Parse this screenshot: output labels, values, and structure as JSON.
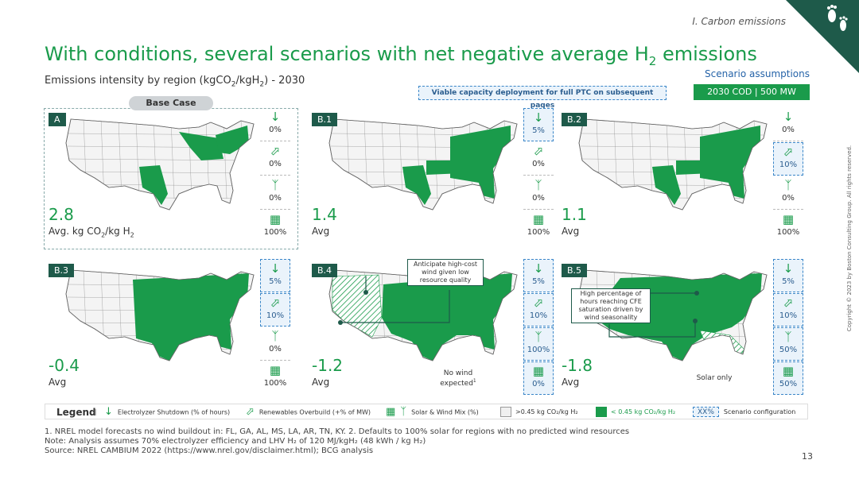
{
  "header": {
    "section": "I. Carbon emissions",
    "title": "With conditions, several scenarios with net negative average H",
    "title_sub": "2",
    "title_end": " emissions",
    "subtitle_pre": "Emissions intensity by region (kgCO",
    "subtitle_sub1": "2",
    "subtitle_mid": "/kgH",
    "subtitle_sub2": "2",
    "subtitle_end": ") - 2030"
  },
  "assumptions": {
    "label": "Scenario assumptions",
    "value": "2030 COD | 500 MW"
  },
  "viable_banner": "Viable capacity deployment for full PTC on subsequent pages",
  "base_case_label": "Base Case",
  "panels": [
    {
      "tag": "A",
      "value": "2.8",
      "label": "Avg. kg CO",
      "label_sub": "2",
      "label_end": "/kg H",
      "label_sub2": "2",
      "shutdown": "0%",
      "overbuild": "0%",
      "wind": "0%",
      "solar": "100%",
      "highlight": []
    },
    {
      "tag": "B.1",
      "value": "1.4",
      "label": "Avg",
      "shutdown": "5%",
      "overbuild": "0%",
      "wind": "0%",
      "solar": "100%",
      "highlight": [
        "shutdown"
      ]
    },
    {
      "tag": "B.2",
      "value": "1.1",
      "label": "Avg",
      "shutdown": "0%",
      "overbuild": "10%",
      "wind": "0%",
      "solar": "100%",
      "highlight": [
        "overbuild"
      ]
    },
    {
      "tag": "B.3",
      "value": "-0.4",
      "label": "Avg",
      "shutdown": "5%",
      "overbuild": "10%",
      "wind": "0%",
      "solar": "100%",
      "highlight": [
        "shutdown",
        "overbuild"
      ]
    },
    {
      "tag": "B.4",
      "value": "-1.2",
      "label": "Avg",
      "shutdown": "5%",
      "overbuild": "10%",
      "wind": "100%",
      "solar": "0%",
      "highlight": [
        "shutdown",
        "overbuild",
        "wind",
        "solar"
      ]
    },
    {
      "tag": "B.5",
      "value": "-1.8",
      "label": "Avg",
      "shutdown": "5%",
      "overbuild": "10%",
      "wind": "50%",
      "solar": "50%",
      "highlight": [
        "shutdown",
        "overbuild",
        "wind",
        "solar"
      ]
    }
  ],
  "callouts": {
    "b4_high_cost": "Anticipate high-cost wind given low resource quality",
    "b4_no_wind": "No wind expected",
    "b4_no_wind_sup": "1",
    "b5_cfe": "High percentage of hours reaching CFE saturation driven by wind seasonality",
    "b5_solar": "Solar only"
  },
  "legend": {
    "title": "Legend",
    "shutdown": "Electrolyzer Shutdown (% of hours)",
    "overbuild": "Renewables Overbuild (+% of MW)",
    "mix": "Solar & Wind Mix (%)",
    "above": ">0.45 kg CO₂/kg H₂",
    "below": "< 0.45 kg CO₂/kg H₂",
    "xx": "XX%",
    "config": "Scenario configuration"
  },
  "footnotes": {
    "line1": "1. NREL model forecasts no wind buildout in: FL, GA, AL, MS, LA, AR, TN, KY. 2. Defaults to 100% solar for regions with no predicted wind resources",
    "line2": "Note: Analysis assumes 70% electrolyzer efficiency and LHV H₂ of 120 MJ/kgH₂ (48 kWh / kg H₂)",
    "line3": "Source: NREL CAMBIUM 2022 (https://www.nrel.gov/disclaimer.html); BCG analysis"
  },
  "page_number": "13",
  "copyright": "Copyright © 2023 by Boston Consulting Group. All rights reserved.",
  "colors": {
    "green": "#1a9b4b",
    "dark_green": "#1e5a4a",
    "blue": "#2563a8",
    "grey": "#cfd3d6"
  },
  "icons": {
    "shutdown": "arrow-down-icon",
    "overbuild": "arrow-diag-icon",
    "wind": "wind-turbine-icon",
    "solar": "solar-panel-icon"
  }
}
